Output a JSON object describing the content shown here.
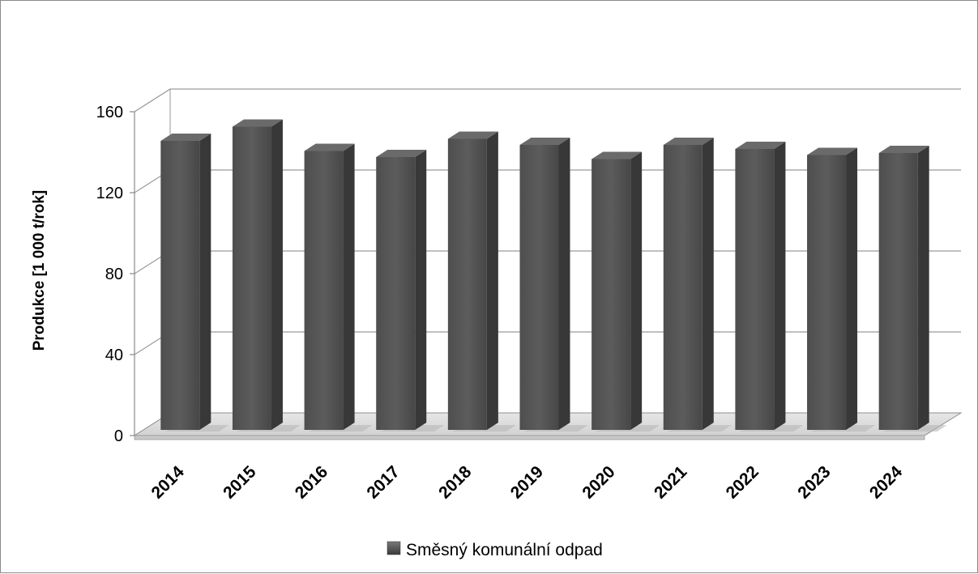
{
  "chart_data": {
    "type": "bar",
    "title": "",
    "xlabel": "",
    "ylabel": "Produkce [1 000 t/rok]",
    "categories": [
      "2014",
      "2015",
      "2016",
      "2017",
      "2018",
      "2019",
      "2020",
      "2021",
      "2022",
      "2023",
      "2024"
    ],
    "series": [
      {
        "name": "Směsný komunální odpad",
        "values": [
          148,
          155,
          143,
          140,
          149,
          146,
          139,
          146,
          144,
          141,
          142
        ],
        "color": "#555555"
      }
    ],
    "ylim": [
      0,
      160
    ],
    "yticks": [
      "0",
      "40",
      "80",
      "120",
      "160"
    ],
    "grid": true,
    "legend_position": "bottom",
    "style": "3d-column"
  }
}
